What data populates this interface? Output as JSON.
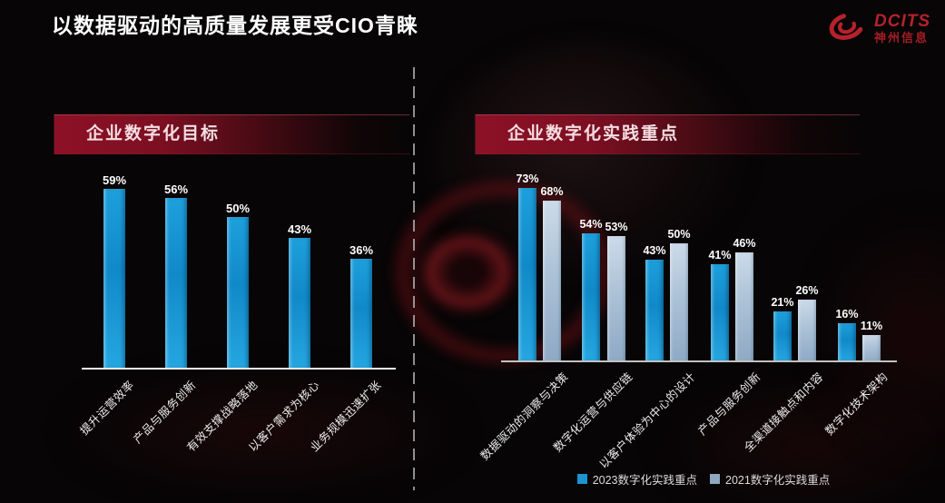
{
  "page_title": "以数据驱动的高质量发展更受CIO青睐",
  "logo": {
    "brand": "DCITS",
    "company": "神州信息",
    "color": "#b6212b"
  },
  "chart_data": [
    {
      "id": "digital-goals",
      "type": "bar",
      "title": "企业数字化目标",
      "categories": [
        "提升运营效率",
        "产品与服务创新",
        "有效支撑战略落地",
        "以客户需求为核心",
        "业务规模迅速扩张"
      ],
      "values": [
        59,
        56,
        50,
        43,
        36
      ],
      "unit": "%",
      "bar_color": "#1b9ad6",
      "ylim": [
        0,
        70
      ],
      "grid": false,
      "value_label_position": "above",
      "category_label_rotation": 45
    },
    {
      "id": "digital-practice-focus",
      "type": "bar",
      "title": "企业数字化实践重点",
      "categories": [
        "数据驱动的洞察与决策",
        "数字化运营与供应链",
        "以客户体验为中心的设计",
        "产品与服务创新",
        "全渠道接触点和内容",
        "数字化技术架构"
      ],
      "series": [
        {
          "name": "2023数字化实践重点",
          "color": "#1b93ce",
          "values": [
            73,
            54,
            43,
            41,
            21,
            16
          ]
        },
        {
          "name": "2021数字化实践重点",
          "color": "#8fa7c0",
          "values": [
            68,
            53,
            50,
            46,
            26,
            11
          ]
        }
      ],
      "unit": "%",
      "ylim": [
        0,
        80
      ],
      "grid": false,
      "value_label_position": "above",
      "category_label_rotation": 45,
      "legend_position": "bottom"
    }
  ]
}
